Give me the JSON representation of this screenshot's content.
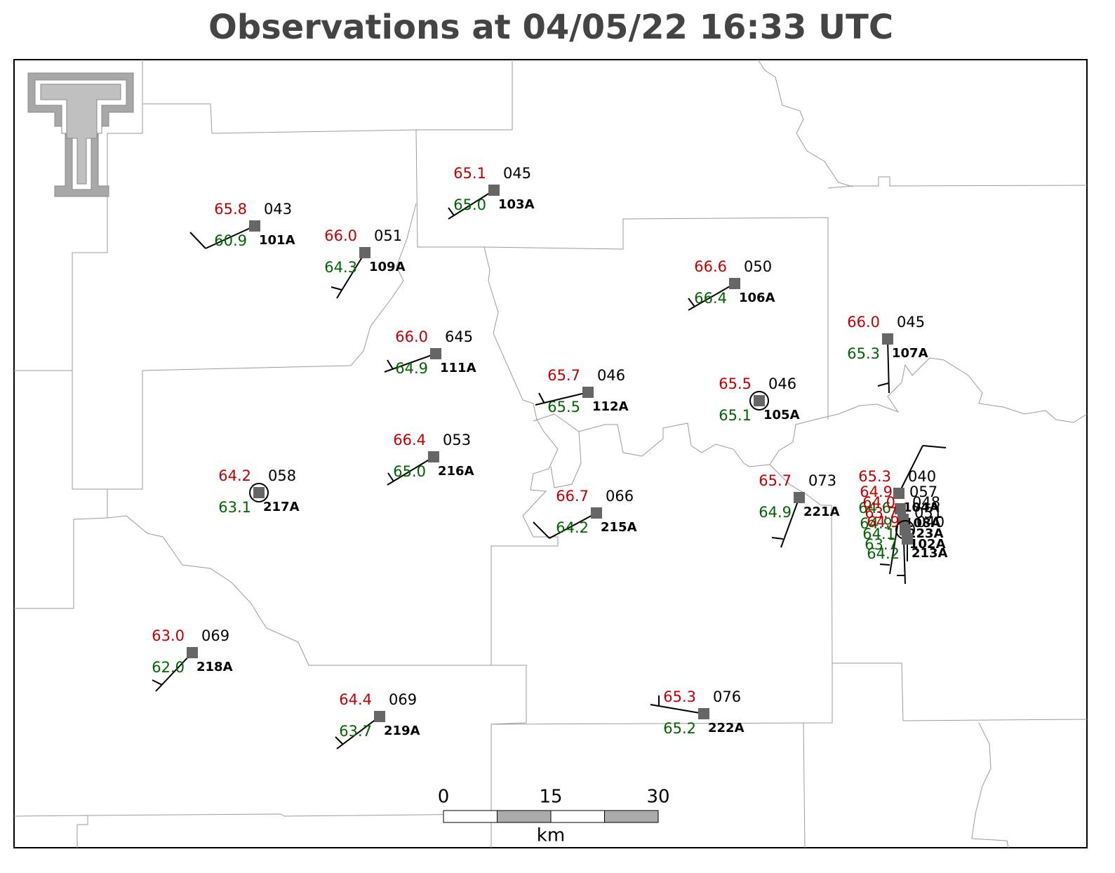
{
  "title": "Observations at 04/05/22 16:33 UTC",
  "stations": [
    {
      "id": "101A",
      "temperature": "65.8",
      "dewpoint": "60.9",
      "pressure": "043"
    },
    {
      "id": "109A",
      "temperature": "66.0",
      "dewpoint": "64.3",
      "pressure": "051"
    },
    {
      "id": "103A",
      "temperature": "65.1",
      "dewpoint": "65.0",
      "pressure": "045"
    },
    {
      "id": "111A",
      "temperature": "66.0",
      "dewpoint": "64.9",
      "pressure": "645"
    },
    {
      "id": "106A",
      "temperature": "66.6",
      "dewpoint": "66.4",
      "pressure": "050"
    },
    {
      "id": "107A",
      "temperature": "66.0",
      "dewpoint": "65.3",
      "pressure": "045"
    },
    {
      "id": "112A",
      "temperature": "65.7",
      "dewpoint": "65.5",
      "pressure": "046"
    },
    {
      "id": "105A",
      "temperature": "65.5",
      "dewpoint": "65.1",
      "pressure": "046"
    },
    {
      "id": "216A",
      "temperature": "66.4",
      "dewpoint": "65.0",
      "pressure": "053"
    },
    {
      "id": "217A",
      "temperature": "64.2",
      "dewpoint": "63.1",
      "pressure": "058"
    },
    {
      "id": "215A",
      "temperature": "66.7",
      "dewpoint": "64.2",
      "pressure": "066"
    },
    {
      "id": "221A",
      "temperature": "65.7",
      "dewpoint": "64.9",
      "pressure": "073"
    },
    {
      "id": "218A",
      "temperature": "63.0",
      "dewpoint": "62.0",
      "pressure": "069"
    },
    {
      "id": "219A",
      "temperature": "64.4",
      "dewpoint": "63.7",
      "pressure": "069"
    },
    {
      "id": "222A",
      "temperature": "65.3",
      "dewpoint": "65.2",
      "pressure": "076"
    },
    {
      "id": "104A",
      "temperature": "65.3",
      "dewpoint": "64.6",
      "pressure": "040"
    },
    {
      "id": "108A",
      "temperature": "64.9",
      "dewpoint": "64.9",
      "pressure": "057"
    },
    {
      "id": "223A",
      "temperature": "64.0",
      "dewpoint": "64.1",
      "pressure": "048"
    },
    {
      "id": "102A",
      "temperature": "63.7",
      "dewpoint": "63.7",
      "pressure": "051"
    },
    {
      "id": "213A",
      "temperature": "64.9",
      "dewpoint": "64.2",
      "pressure": "040"
    }
  ],
  "scale_bar": {
    "labels": [
      "0",
      "15",
      "30"
    ],
    "unit": "km"
  }
}
